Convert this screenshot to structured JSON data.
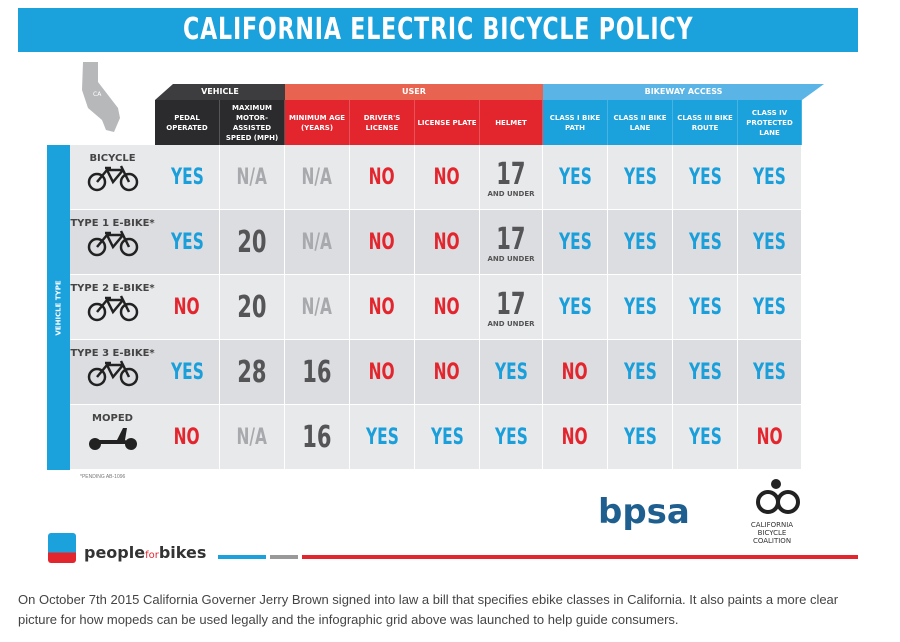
{
  "title": "CALIFORNIA ELECTRIC BICYCLE POLICY",
  "state_label": "CA",
  "groups": [
    {
      "label": "VEHICLE",
      "color": "#3d3d3f"
    },
    {
      "label": "USER",
      "color": "#e86450"
    },
    {
      "label": "BIKEWAY ACCESS",
      "color": "#5ab4e6"
    }
  ],
  "columns": [
    "PEDAL OPERATED",
    "MAXIMUM MOTOR-ASSISTED SPEED (MPH)",
    "MINIMUM AGE (YEARS)",
    "DRIVER'S LICENSE",
    "LICENSE PLATE",
    "HELMET",
    "CLASS I BIKE PATH",
    "CLASS II BIKE LANE",
    "CLASS III BIKE ROUTE",
    "CLASS IV PROTECTED LANE"
  ],
  "vehicle_type_label": "VEHICLE TYPE",
  "rows": [
    {
      "label": "BICYCLE",
      "icon": "bicycle",
      "cells": [
        "YES",
        "N/A",
        "N/A",
        "NO",
        "NO",
        "17",
        "YES",
        "YES",
        "YES",
        "YES"
      ]
    },
    {
      "label": "TYPE 1 E-BIKE*",
      "icon": "bicycle",
      "cells": [
        "YES",
        "20",
        "N/A",
        "NO",
        "NO",
        "17",
        "YES",
        "YES",
        "YES",
        "YES"
      ]
    },
    {
      "label": "TYPE 2 E-BIKE*",
      "icon": "bicycle",
      "cells": [
        "NO",
        "20",
        "N/A",
        "NO",
        "NO",
        "17",
        "YES",
        "YES",
        "YES",
        "YES"
      ]
    },
    {
      "label": "TYPE 3 E-BIKE*",
      "icon": "bicycle",
      "cells": [
        "YES",
        "28",
        "16",
        "NO",
        "NO",
        "YES",
        "NO",
        "YES",
        "YES",
        "YES"
      ]
    },
    {
      "label": "MOPED",
      "icon": "moped",
      "cells": [
        "NO",
        "N/A",
        "16",
        "YES",
        "YES",
        "YES",
        "NO",
        "YES",
        "YES",
        "NO"
      ]
    }
  ],
  "helmet_sub": "AND UNDER",
  "footnote": "*PENDING AB-1096",
  "logos": {
    "bpsa": "bpsa",
    "cbc": "CALIFORNIA BICYCLE COALITION",
    "pfb_a": "people",
    "pfb_b": "for",
    "pfb_c": "bikes"
  },
  "colors": {
    "yes": "#1a9fdb",
    "no": "#e3262e",
    "na": "#a7a9ac",
    "num": "#555558"
  },
  "caption": "On October 7th 2015 California Governer Jerry Brown signed into law a bill that specifies ebike classes in California. It also paints a more clear picture for how mopeds can be used legally and the infographic grid above was launched to help guide consumers."
}
